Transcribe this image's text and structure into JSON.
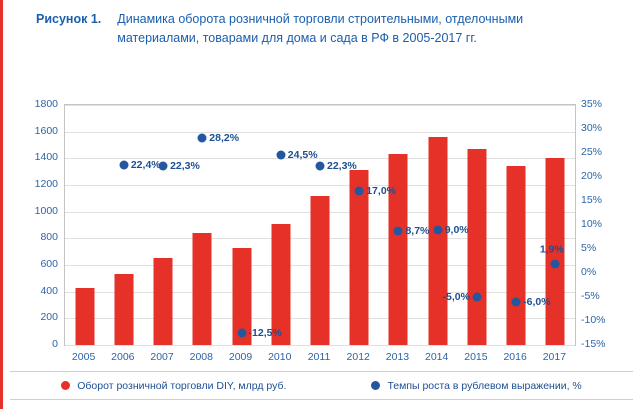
{
  "page": {
    "figure_label": "Рисунок 1.",
    "figure_title": "Динамика оборота розничной торговли строительными, отделочными материалами, товарами для дома и сада в РФ в 2005-2017 гг."
  },
  "colors": {
    "bar_red": "#e63128",
    "dot_blue": "#2457a0",
    "text_blue": "#1a5fae",
    "axis_text_blue": "#2d64a7"
  },
  "chart_data": {
    "type": "combo",
    "title": "Динамика оборота розничной торговли строительными, отделочными материалами, товарами для дома и сада в РФ в 2005-2017 гг.",
    "categories": [
      "2005",
      "2006",
      "2007",
      "2008",
      "2009",
      "2010",
      "2011",
      "2012",
      "2013",
      "2014",
      "2015",
      "2016",
      "2017"
    ],
    "series": [
      {
        "name": "Оборот розничной торговли DIY, млрд руб.",
        "type": "bar",
        "axis": "left",
        "color": "#e63128",
        "values": [
          430,
          530,
          650,
          840,
          730,
          910,
          1120,
          1310,
          1430,
          1560,
          1470,
          1340,
          1400
        ]
      },
      {
        "name": "Темпы роста в рублевом выражении, %",
        "type": "scatter",
        "axis": "right",
        "color": "#2457a0",
        "values": [
          null,
          22.4,
          22.3,
          28.2,
          -12.5,
          24.5,
          22.3,
          17.0,
          8.7,
          9.0,
          -5.0,
          -6.0,
          1.9
        ],
        "labels": [
          "",
          "22,4%",
          "22,3%",
          "28,2%",
          "-12,5%",
          "24,5%",
          "22,3%",
          "17,0%",
          "8,7%",
          "9,0%",
          "-5,0%",
          "-6,0%",
          "1,9%"
        ],
        "label_pos": [
          "",
          "right",
          "right",
          "right",
          "right",
          "right",
          "right",
          "right",
          "right",
          "right",
          "left",
          "right",
          "above"
        ]
      }
    ],
    "left_axis": {
      "min": 0,
      "max": 1800,
      "step": 200,
      "ticks": [
        "1800",
        "1600",
        "1400",
        "1200",
        "1000",
        "800",
        "600",
        "400",
        "200",
        "0"
      ]
    },
    "right_axis": {
      "min": -15,
      "max": 35,
      "step": 5,
      "ticks": [
        "35%",
        "30%",
        "25%",
        "20%",
        "15%",
        "10%",
        "5%",
        "0%",
        "-5%",
        "-10%",
        "-15%"
      ]
    },
    "grid": true,
    "legend_position": "bottom"
  }
}
